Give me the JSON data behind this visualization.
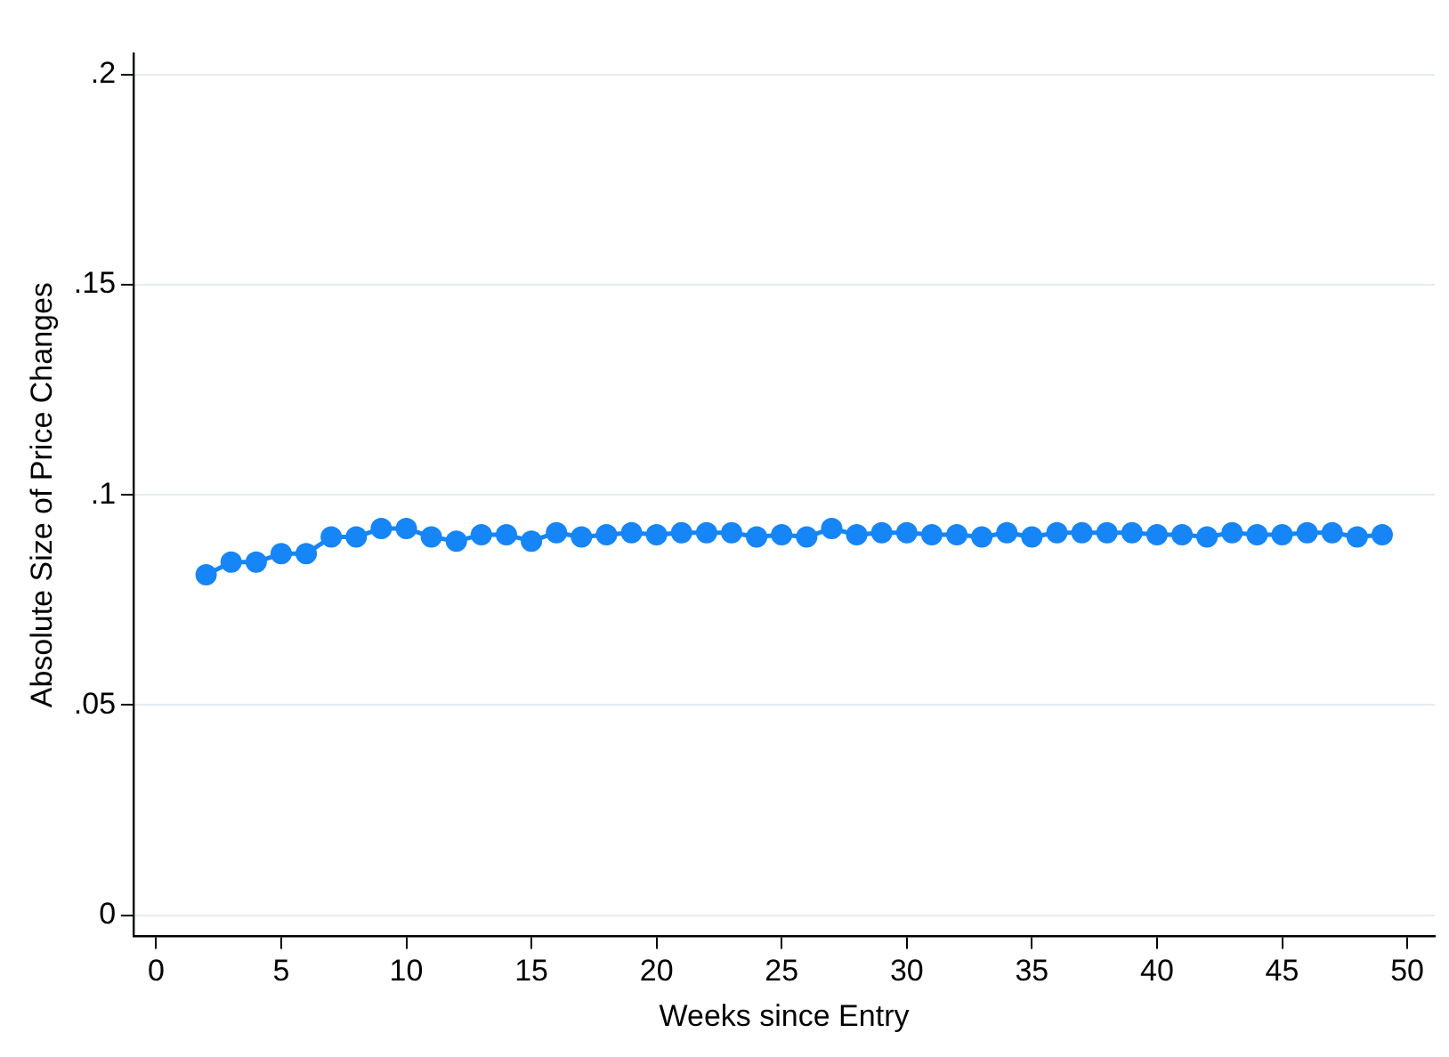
{
  "chart_data": {
    "type": "line",
    "xlabel": "Weeks since Entry",
    "ylabel": "Absolute Size of Price Changes",
    "x": [
      2,
      3,
      4,
      5,
      6,
      7,
      8,
      9,
      10,
      11,
      12,
      13,
      14,
      15,
      16,
      17,
      18,
      19,
      20,
      21,
      22,
      23,
      24,
      25,
      26,
      27,
      28,
      29,
      30,
      31,
      32,
      33,
      34,
      35,
      36,
      37,
      38,
      39,
      40,
      41,
      42,
      43,
      44,
      45,
      46,
      47,
      48,
      49
    ],
    "series": [
      {
        "color": "#1585f7",
        "values": [
          0.081,
          0.084,
          0.084,
          0.086,
          0.086,
          0.09,
          0.09,
          0.092,
          0.092,
          0.09,
          0.089,
          0.0905,
          0.0905,
          0.089,
          0.091,
          0.09,
          0.0905,
          0.091,
          0.0905,
          0.091,
          0.091,
          0.091,
          0.09,
          0.0905,
          0.09,
          0.092,
          0.0905,
          0.091,
          0.091,
          0.0905,
          0.0905,
          0.09,
          0.091,
          0.09,
          0.091,
          0.091,
          0.091,
          0.091,
          0.0905,
          0.0905,
          0.09,
          0.091,
          0.0905,
          0.0905,
          0.091,
          0.091,
          0.09,
          0.0905
        ]
      }
    ],
    "xlim": [
      -0.9,
      51.1
    ],
    "xticks": [
      0,
      5,
      10,
      15,
      20,
      25,
      30,
      35,
      40,
      45,
      50
    ],
    "ylim": [
      -0.005,
      0.205
    ],
    "yticks": [
      0,
      {
        "value": 0.05,
        "label": ".05"
      },
      {
        "value": 0.1,
        "label": ".1"
      },
      {
        "value": 0.15,
        "label": ".15"
      },
      {
        "value": 0.2,
        "label": ".2"
      }
    ],
    "grid": "y",
    "legend": false,
    "marker": "circle",
    "line_style": "solid"
  }
}
